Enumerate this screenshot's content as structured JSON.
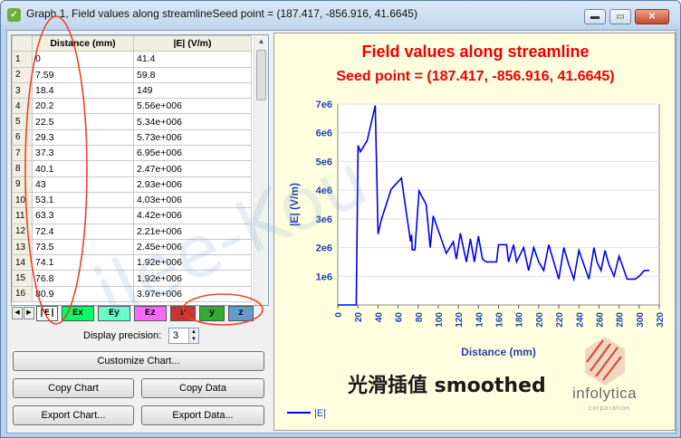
{
  "window": {
    "title": "Graph 1, Field values along streamlineSeed point = (187.417, -856.916, 41.6645)",
    "minimize": "▬",
    "maximize": "▭",
    "close": "✕"
  },
  "table": {
    "headers": [
      "Distance (mm)",
      "|E| (V/m)"
    ],
    "rows": [
      {
        "n": "1",
        "d": "0",
        "e": "41.4"
      },
      {
        "n": "2",
        "d": "7.59",
        "e": "59.8"
      },
      {
        "n": "3",
        "d": "18.4",
        "e": "149"
      },
      {
        "n": "4",
        "d": "20.2",
        "e": "5.56e+006"
      },
      {
        "n": "5",
        "d": "22.5",
        "e": "5.34e+006"
      },
      {
        "n": "6",
        "d": "29.3",
        "e": "5.73e+006"
      },
      {
        "n": "7",
        "d": "37.3",
        "e": "6.95e+006"
      },
      {
        "n": "8",
        "d": "40.1",
        "e": "2.47e+006"
      },
      {
        "n": "9",
        "d": "43",
        "e": "2.93e+006"
      },
      {
        "n": "10",
        "d": "53.1",
        "e": "4.03e+006"
      },
      {
        "n": "11",
        "d": "63.3",
        "e": "4.42e+006"
      },
      {
        "n": "12",
        "d": "72.4",
        "e": "2.21e+006"
      },
      {
        "n": "13",
        "d": "73.5",
        "e": "2.45e+006"
      },
      {
        "n": "14",
        "d": "74.1",
        "e": "1.92e+006"
      },
      {
        "n": "15",
        "d": "76.8",
        "e": "1.92e+006"
      },
      {
        "n": "16",
        "d": "80.9",
        "e": "3.97e+006"
      }
    ]
  },
  "tabs": [
    {
      "label": "|E|",
      "color": "#ffffff"
    },
    {
      "label": "Ex",
      "color": "#00ff66"
    },
    {
      "label": "Ey",
      "color": "#66ffcc"
    },
    {
      "label": "Ez",
      "color": "#ff66ff"
    },
    {
      "label": "x",
      "color": "#cc3333"
    },
    {
      "label": "y",
      "color": "#33aa33"
    },
    {
      "label": "z",
      "color": "#6699cc"
    }
  ],
  "controls": {
    "precision_label": "Display precision:",
    "precision_value": "3",
    "customize": "Customize Chart...",
    "copy_chart": "Copy Chart",
    "copy_data": "Copy Data",
    "export_chart": "Export Chart...",
    "export_data": "Export Data..."
  },
  "chart_data": {
    "type": "line",
    "title": "Field values along streamline",
    "subtitle": "Seed point = (187.417, -856.916, 41.6645)",
    "xlabel": "Distance (mm)",
    "ylabel": "|E| (V/m)",
    "xlim": [
      0,
      320
    ],
    "ylim": [
      0,
      7000000
    ],
    "xticks": [
      "0",
      "20",
      "40",
      "60",
      "80",
      "100",
      "120",
      "140",
      "160",
      "180",
      "200",
      "220",
      "240",
      "260",
      "280",
      "300",
      "320"
    ],
    "yticks": [
      "1e6",
      "2e6",
      "3e6",
      "4e6",
      "5e6",
      "6e6",
      "7e6"
    ],
    "legend": "|E|",
    "legend_position": "bottom-left",
    "line_color": "#0000ee",
    "title_color": "#ee0000",
    "series": [
      {
        "name": "|E|",
        "x": [
          0,
          7.59,
          18.4,
          20.2,
          22.5,
          29.3,
          37.3,
          40.1,
          43,
          53.1,
          63.3,
          72.4,
          73.5,
          74.1,
          76.8,
          80.9,
          88,
          92,
          95,
          100,
          108,
          115,
          118,
          122,
          128,
          132,
          136,
          140,
          144,
          148,
          152,
          158,
          160,
          168,
          170,
          175,
          178,
          185,
          190,
          195,
          200,
          205,
          210,
          215,
          220,
          225,
          230,
          235,
          240,
          245,
          250,
          255,
          258,
          262,
          266,
          270,
          275,
          280,
          284,
          288,
          292,
          296,
          300,
          305,
          310
        ],
        "y": [
          41.4,
          59.8,
          149,
          5560000,
          5340000,
          5730000,
          6950000,
          2470000,
          2930000,
          4030000,
          4420000,
          2210000,
          2450000,
          1920000,
          1920000,
          3970000,
          3500000,
          2000000,
          3100000,
          2600000,
          1800000,
          2200000,
          1600000,
          2500000,
          1500000,
          2300000,
          1500000,
          2400000,
          1600000,
          1500000,
          1500000,
          1500000,
          2100000,
          2100000,
          1500000,
          2100000,
          1500000,
          2000000,
          1200000,
          2000000,
          1500000,
          1200000,
          2100000,
          1500000,
          900000,
          2000000,
          1400000,
          900000,
          1900000,
          1400000,
          900000,
          2000000,
          1500000,
          1200000,
          1900000,
          1400000,
          1000000,
          1700000,
          1300000,
          900000,
          900000,
          900000,
          1000000,
          1200000,
          1200000
        ]
      }
    ]
  },
  "annotation": {
    "text": "光滑插值 smoothed",
    "watermark": "ilee-Kou"
  },
  "logo": {
    "name": "infolytica",
    "sub": "corporation"
  }
}
